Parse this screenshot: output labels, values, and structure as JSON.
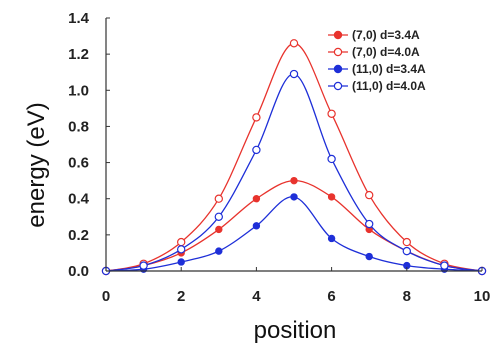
{
  "chart_data": {
    "type": "line",
    "title": "",
    "xlabel": "position",
    "ylabel": "energy (eV)",
    "xlim": [
      0,
      10
    ],
    "ylim": [
      0,
      1.4
    ],
    "x_ticks": [
      "0",
      "2",
      "4",
      "6",
      "8",
      "10"
    ],
    "y_ticks": [
      "0.0",
      "0.2",
      "0.4",
      "0.6",
      "0.8",
      "1.0",
      "1.2",
      "1.4"
    ],
    "grid": false,
    "legend_position": "top-right",
    "x": [
      0,
      1,
      2,
      3,
      4,
      5,
      6,
      7,
      8,
      9,
      10
    ],
    "series": [
      {
        "name": "(7,0)  d=3.4A",
        "color": "#e8332d",
        "marker": "filled-circle",
        "values": [
          0.0,
          0.03,
          0.1,
          0.23,
          0.4,
          0.5,
          0.41,
          0.23,
          0.11,
          0.03,
          0.0
        ]
      },
      {
        "name": "(7,0)  d=4.0A",
        "color": "#e8332d",
        "marker": "open-circle",
        "values": [
          0.0,
          0.04,
          0.16,
          0.4,
          0.85,
          1.26,
          0.87,
          0.42,
          0.16,
          0.04,
          0.0
        ]
      },
      {
        "name": "(11,0) d=3.4A",
        "color": "#1e2fd8",
        "marker": "filled-circle",
        "values": [
          0.0,
          0.01,
          0.05,
          0.11,
          0.25,
          0.41,
          0.18,
          0.08,
          0.03,
          0.01,
          0.0
        ]
      },
      {
        "name": "(11,0) d=4.0A",
        "color": "#1e2fd8",
        "marker": "open-circle",
        "values": [
          0.0,
          0.03,
          0.12,
          0.3,
          0.67,
          1.09,
          0.62,
          0.26,
          0.11,
          0.03,
          0.0
        ]
      }
    ]
  }
}
